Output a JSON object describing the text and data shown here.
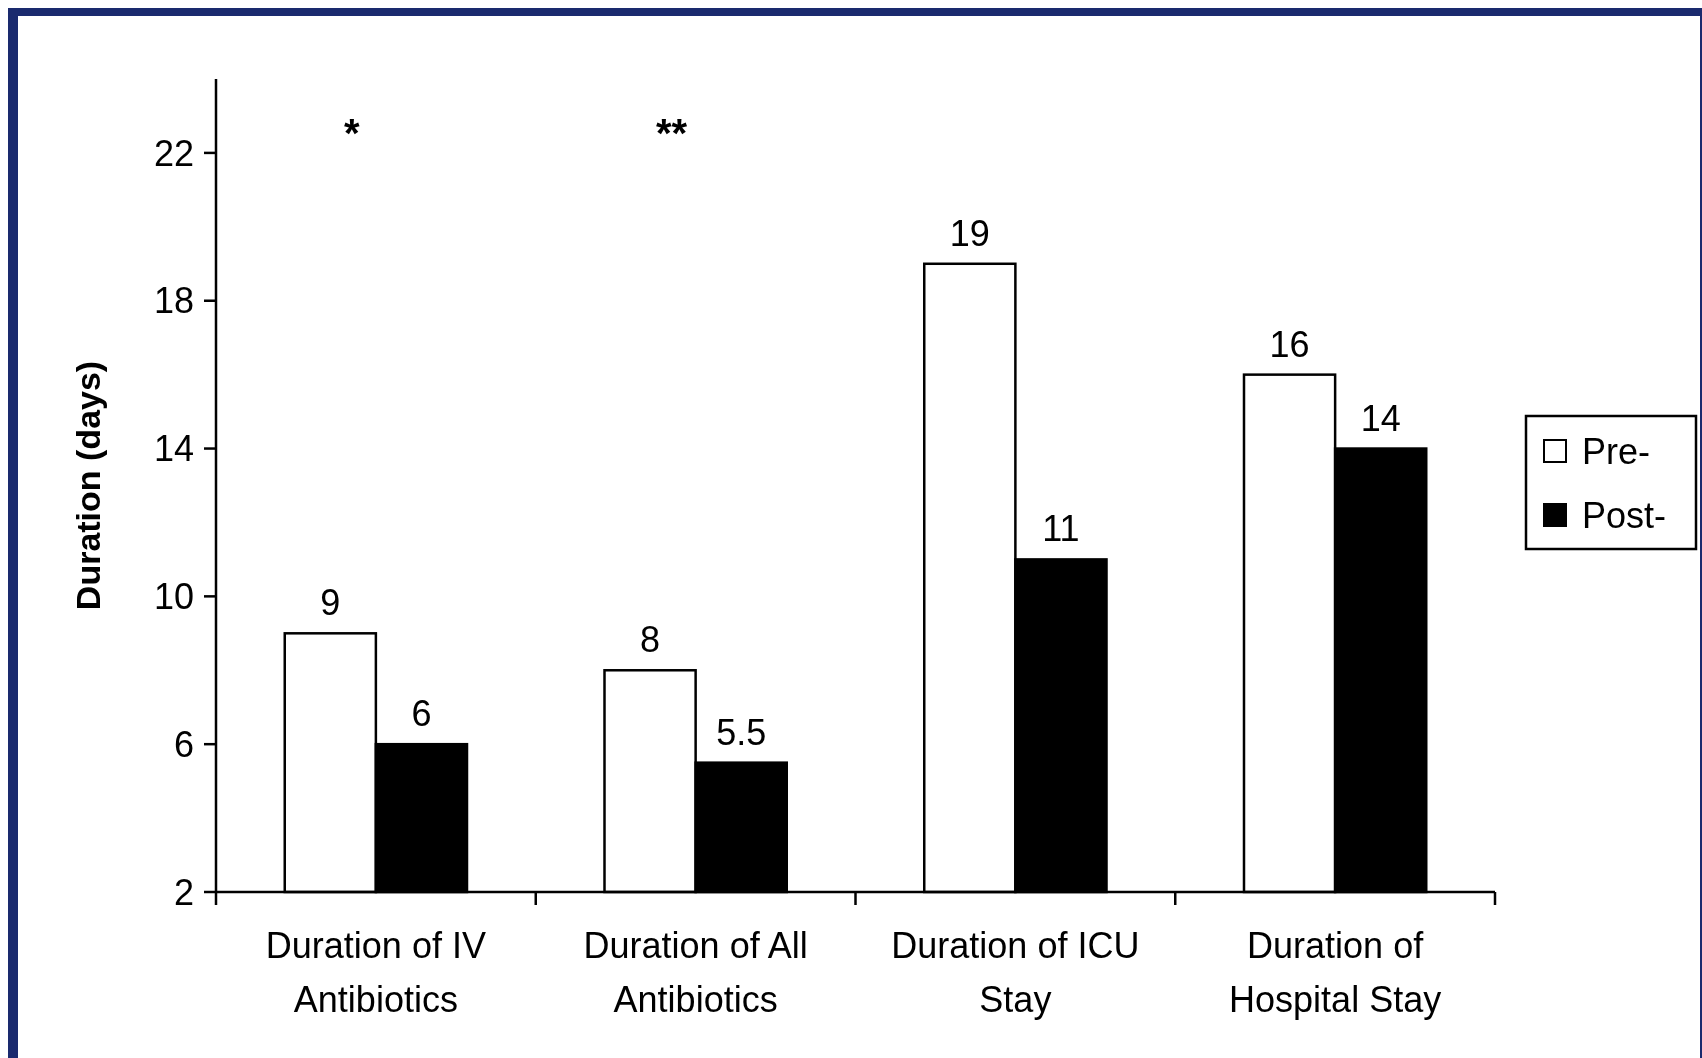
{
  "chart_data": {
    "type": "bar",
    "ylabel": "Duration (days)",
    "categories": [
      "Duration of IV Antibiotics",
      "Duration of All Antibiotics",
      "Duration of ICU Stay",
      "Duration of Hospital Stay"
    ],
    "series": [
      {
        "name": "Pre-",
        "color": "#ffffff",
        "values": [
          9,
          8,
          19,
          16
        ]
      },
      {
        "name": "Post-",
        "color": "#000000",
        "values": [
          6,
          5.5,
          11,
          14
        ]
      }
    ],
    "ylim": [
      2,
      24
    ],
    "yticks": [
      2,
      6,
      10,
      14,
      18,
      22
    ],
    "data_labels": true,
    "legend": "right",
    "grid": false,
    "annotations": [
      "*",
      "**"
    ]
  }
}
